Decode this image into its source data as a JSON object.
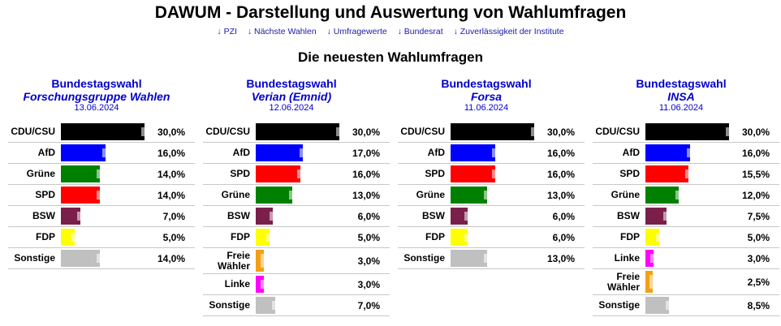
{
  "header": {
    "title": "DAWUM - Darstellung und Auswertung von Wahlumfragen",
    "nav": [
      "↓ PZI",
      "↓ Nächste Wahlen",
      "↓ Umfragewerte",
      "↓ Bundesrat",
      "↓ Zuverlässigkeit der Institute"
    ],
    "subtitle": "Die neuesten Wahlumfragen"
  },
  "colors": {
    "CDU/CSU": "#000000",
    "AfD": "#0000ff",
    "Grüne": "#008000",
    "SPD": "#ff0000",
    "BSW": "#7a1f4a",
    "FDP": "#ffff00",
    "Sonstige": "#c0c0c0",
    "Freie Wähler": "#f3a014",
    "Linke": "#ff00ff"
  },
  "polls": [
    {
      "election": "Bundestagswahl",
      "institute": "Forschungsgruppe Wahlen",
      "date": "13.06.2024",
      "results": [
        {
          "party": "CDU/CSU",
          "label": "CDU/CSU",
          "value": "30,0%",
          "pct": 30.0,
          "prev": 30.0
        },
        {
          "party": "AfD",
          "label": "AfD",
          "value": "16,0%",
          "pct": 16.0,
          "prev": 16.0
        },
        {
          "party": "Grüne",
          "label": "Grüne",
          "value": "14,0%",
          "pct": 14.0,
          "prev": 14.0
        },
        {
          "party": "SPD",
          "label": "SPD",
          "value": "14,0%",
          "pct": 14.0,
          "prev": 14.0
        },
        {
          "party": "BSW",
          "label": "BSW",
          "value": "7,0%",
          "pct": 7.0,
          "prev": 7.0
        },
        {
          "party": "FDP",
          "label": "FDP",
          "value": "5,0%",
          "pct": 5.0,
          "prev": 5.0
        },
        {
          "party": "Sonstige",
          "label": "Sonstige",
          "value": "14,0%",
          "pct": 14.0,
          "prev": 14.0
        }
      ]
    },
    {
      "election": "Bundestagswahl",
      "institute": "Verian (Emnid)",
      "date": "12.06.2024",
      "results": [
        {
          "party": "CDU/CSU",
          "label": "CDU/CSU",
          "value": "30,0%",
          "pct": 30.0,
          "prev": 30.0
        },
        {
          "party": "AfD",
          "label": "AfD",
          "value": "17,0%",
          "pct": 17.0,
          "prev": 17.0
        },
        {
          "party": "SPD",
          "label": "SPD",
          "value": "16,0%",
          "pct": 16.0,
          "prev": 16.0
        },
        {
          "party": "Grüne",
          "label": "Grüne",
          "value": "13,0%",
          "pct": 13.0,
          "prev": 13.0
        },
        {
          "party": "BSW",
          "label": "BSW",
          "value": "6,0%",
          "pct": 6.0,
          "prev": 6.0
        },
        {
          "party": "FDP",
          "label": "FDP",
          "value": "5,0%",
          "pct": 5.0,
          "prev": 5.0
        },
        {
          "party": "Freie Wähler",
          "label": "Freie Wähler",
          "value": "3,0%",
          "pct": 3.0,
          "prev": 3.0
        },
        {
          "party": "Linke",
          "label": "Linke",
          "value": "3,0%",
          "pct": 3.0,
          "prev": 3.0
        },
        {
          "party": "Sonstige",
          "label": "Sonstige",
          "value": "7,0%",
          "pct": 7.0,
          "prev": 7.0
        }
      ]
    },
    {
      "election": "Bundestagswahl",
      "institute": "Forsa",
      "date": "11.06.2024",
      "results": [
        {
          "party": "CDU/CSU",
          "label": "CDU/CSU",
          "value": "30,0%",
          "pct": 30.0,
          "prev": 30.0
        },
        {
          "party": "AfD",
          "label": "AfD",
          "value": "16,0%",
          "pct": 16.0,
          "prev": 16.0
        },
        {
          "party": "SPD",
          "label": "SPD",
          "value": "16,0%",
          "pct": 16.0,
          "prev": 16.0
        },
        {
          "party": "Grüne",
          "label": "Grüne",
          "value": "13,0%",
          "pct": 13.0,
          "prev": 13.0
        },
        {
          "party": "BSW",
          "label": "BSW",
          "value": "6,0%",
          "pct": 6.0,
          "prev": 6.0
        },
        {
          "party": "FDP",
          "label": "FDP",
          "value": "6,0%",
          "pct": 6.0,
          "prev": 6.0
        },
        {
          "party": "Sonstige",
          "label": "Sonstige",
          "value": "13,0%",
          "pct": 13.0,
          "prev": 13.0
        }
      ]
    },
    {
      "election": "Bundestagswahl",
      "institute": "INSA",
      "date": "11.06.2024",
      "results": [
        {
          "party": "CDU/CSU",
          "label": "CDU/CSU",
          "value": "30,0%",
          "pct": 30.0,
          "prev": 30.0
        },
        {
          "party": "AfD",
          "label": "AfD",
          "value": "16,0%",
          "pct": 16.0,
          "prev": 16.0
        },
        {
          "party": "SPD",
          "label": "SPD",
          "value": "15,5%",
          "pct": 15.5,
          "prev": 15.5
        },
        {
          "party": "Grüne",
          "label": "Grüne",
          "value": "12,0%",
          "pct": 12.0,
          "prev": 12.0
        },
        {
          "party": "BSW",
          "label": "BSW",
          "value": "7,5%",
          "pct": 7.5,
          "prev": 7.5
        },
        {
          "party": "FDP",
          "label": "FDP",
          "value": "5,0%",
          "pct": 5.0,
          "prev": 5.0
        },
        {
          "party": "Linke",
          "label": "Linke",
          "value": "3,0%",
          "pct": 3.0,
          "prev": 3.0
        },
        {
          "party": "Freie Wähler",
          "label": "Freie Wähler",
          "value": "2,5%",
          "pct": 2.5,
          "prev": 2.5
        },
        {
          "party": "Sonstige",
          "label": "Sonstige",
          "value": "8,5%",
          "pct": 8.5,
          "prev": 8.5
        }
      ]
    }
  ]
}
